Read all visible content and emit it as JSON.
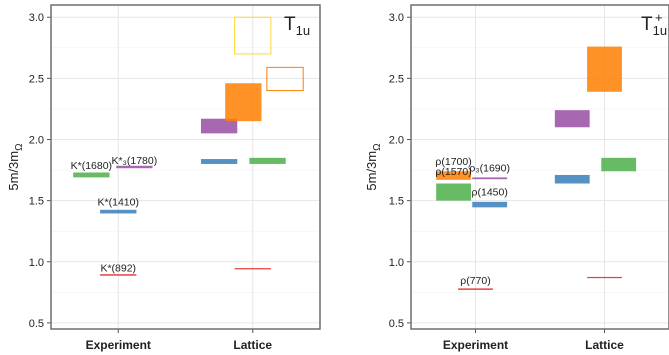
{
  "chart_data": [
    {
      "type": "box",
      "title": "T",
      "title_sub": "1u",
      "title_sup": "",
      "ylabel": "5m/3m",
      "ylabel_sub": "Ω",
      "ylim": [
        0.45,
        3.1
      ],
      "yticks": [
        "0.5",
        "1.0",
        "1.5",
        "2.0",
        "2.5",
        "3.0"
      ],
      "categories": [
        "Experiment",
        "Lattice"
      ],
      "grid": true,
      "boxes": [
        {
          "cat": "Experiment",
          "off": -0.2,
          "w": 0.27,
          "y0": 1.69,
          "y1": 1.73,
          "color": "#4daf4a",
          "fill": true
        },
        {
          "cat": "Experiment",
          "off": 0.12,
          "w": 0.27,
          "y0": 1.765,
          "y1": 1.785,
          "color": "#984ea3",
          "fill": true
        },
        {
          "cat": "Experiment",
          "off": 0.0,
          "w": 0.27,
          "y0": 1.395,
          "y1": 1.425,
          "color": "#377eb8",
          "fill": true
        },
        {
          "cat": "Experiment",
          "off": 0.0,
          "w": 0.27,
          "y0": 0.886,
          "y1": 0.898,
          "color": "#e41a1c",
          "fill": true
        },
        {
          "cat": "Lattice",
          "off": -0.25,
          "w": 0.27,
          "y0": 1.8,
          "y1": 1.84,
          "color": "#377eb8",
          "fill": true
        },
        {
          "cat": "Lattice",
          "off": 0.11,
          "w": 0.27,
          "y0": 1.8,
          "y1": 1.85,
          "color": "#4daf4a",
          "fill": true
        },
        {
          "cat": "Lattice",
          "off": -0.25,
          "w": 0.27,
          "y0": 2.05,
          "y1": 2.17,
          "color": "#984ea3",
          "fill": true
        },
        {
          "cat": "Lattice",
          "off": -0.07,
          "w": 0.27,
          "y0": 2.15,
          "y1": 2.46,
          "color": "#ff7f00",
          "fill": true
        },
        {
          "cat": "Lattice",
          "off": 0.24,
          "w": 0.27,
          "y0": 2.4,
          "y1": 2.59,
          "color": "#ff7f00",
          "fill": false
        },
        {
          "cat": "Lattice",
          "off": 0.0,
          "w": 0.27,
          "y0": 2.7,
          "y1": 3.0,
          "color": "#ffd92f",
          "fill": false
        },
        {
          "cat": "Lattice",
          "off": 0.0,
          "w": 0.27,
          "y0": 0.938,
          "y1": 0.948,
          "color": "#e41a1c",
          "fill": true
        }
      ],
      "annotations": [
        {
          "text": "K*(1680)",
          "cat": "Experiment",
          "off": -0.2,
          "y": 1.76
        },
        {
          "text": "K*₃(1780)",
          "cat": "Experiment",
          "off": 0.12,
          "y": 1.8
        },
        {
          "text": "K*(1410)",
          "cat": "Experiment",
          "off": 0.0,
          "y": 1.46
        },
        {
          "text": "K*(892)",
          "cat": "Experiment",
          "off": 0.0,
          "y": 0.92
        }
      ]
    },
    {
      "type": "box",
      "title": "T",
      "title_sub": "1u",
      "title_sup": "+",
      "ylabel": "5m/3m",
      "ylabel_sub": "Ω",
      "ylim": [
        0.45,
        3.1
      ],
      "yticks": [
        "0.5",
        "1.0",
        "1.5",
        "2.0",
        "2.5",
        "3.0"
      ],
      "categories": [
        "Experiment",
        "Lattice"
      ],
      "grid": true,
      "boxes": [
        {
          "cat": "Experiment",
          "off": -0.17,
          "w": 0.27,
          "y0": 1.5,
          "y1": 1.64,
          "color": "#4daf4a",
          "fill": true
        },
        {
          "cat": "Experiment",
          "off": -0.17,
          "w": 0.27,
          "y0": 1.67,
          "y1": 1.74,
          "color": "#ff7f00",
          "fill": true
        },
        {
          "cat": "Experiment",
          "off": 0.11,
          "w": 0.27,
          "y0": 1.675,
          "y1": 1.69,
          "color": "#984ea3",
          "fill": true
        },
        {
          "cat": "Experiment",
          "off": 0.11,
          "w": 0.27,
          "y0": 1.445,
          "y1": 1.49,
          "color": "#377eb8",
          "fill": true
        },
        {
          "cat": "Experiment",
          "off": 0.0,
          "w": 0.27,
          "y0": 0.77,
          "y1": 0.782,
          "color": "#e41a1c",
          "fill": true
        },
        {
          "cat": "Lattice",
          "off": -0.25,
          "w": 0.27,
          "y0": 2.1,
          "y1": 2.24,
          "color": "#984ea3",
          "fill": true
        },
        {
          "cat": "Lattice",
          "off": -0.25,
          "w": 0.27,
          "y0": 1.64,
          "y1": 1.71,
          "color": "#377eb8",
          "fill": true
        },
        {
          "cat": "Lattice",
          "off": 0.11,
          "w": 0.27,
          "y0": 1.74,
          "y1": 1.85,
          "color": "#4daf4a",
          "fill": true
        },
        {
          "cat": "Lattice",
          "off": 0.0,
          "w": 0.27,
          "y0": 2.39,
          "y1": 2.76,
          "color": "#ff7f00",
          "fill": true
        },
        {
          "cat": "Lattice",
          "off": 0.0,
          "w": 0.27,
          "y0": 0.866,
          "y1": 0.876,
          "color": "#e41a1c",
          "fill": true
        }
      ],
      "annotations": [
        {
          "text": "ρ(1700)",
          "cat": "Experiment",
          "off": -0.17,
          "y": 1.79
        },
        {
          "text": "ρ(1570)",
          "cat": "Experiment",
          "off": -0.17,
          "y": 1.71
        },
        {
          "text": "ρ₃(1690)",
          "cat": "Experiment",
          "off": 0.11,
          "y": 1.74
        },
        {
          "text": "ρ(1450)",
          "cat": "Experiment",
          "off": 0.11,
          "y": 1.54
        },
        {
          "text": "ρ(770)",
          "cat": "Experiment",
          "off": 0.0,
          "y": 0.82
        }
      ]
    }
  ]
}
